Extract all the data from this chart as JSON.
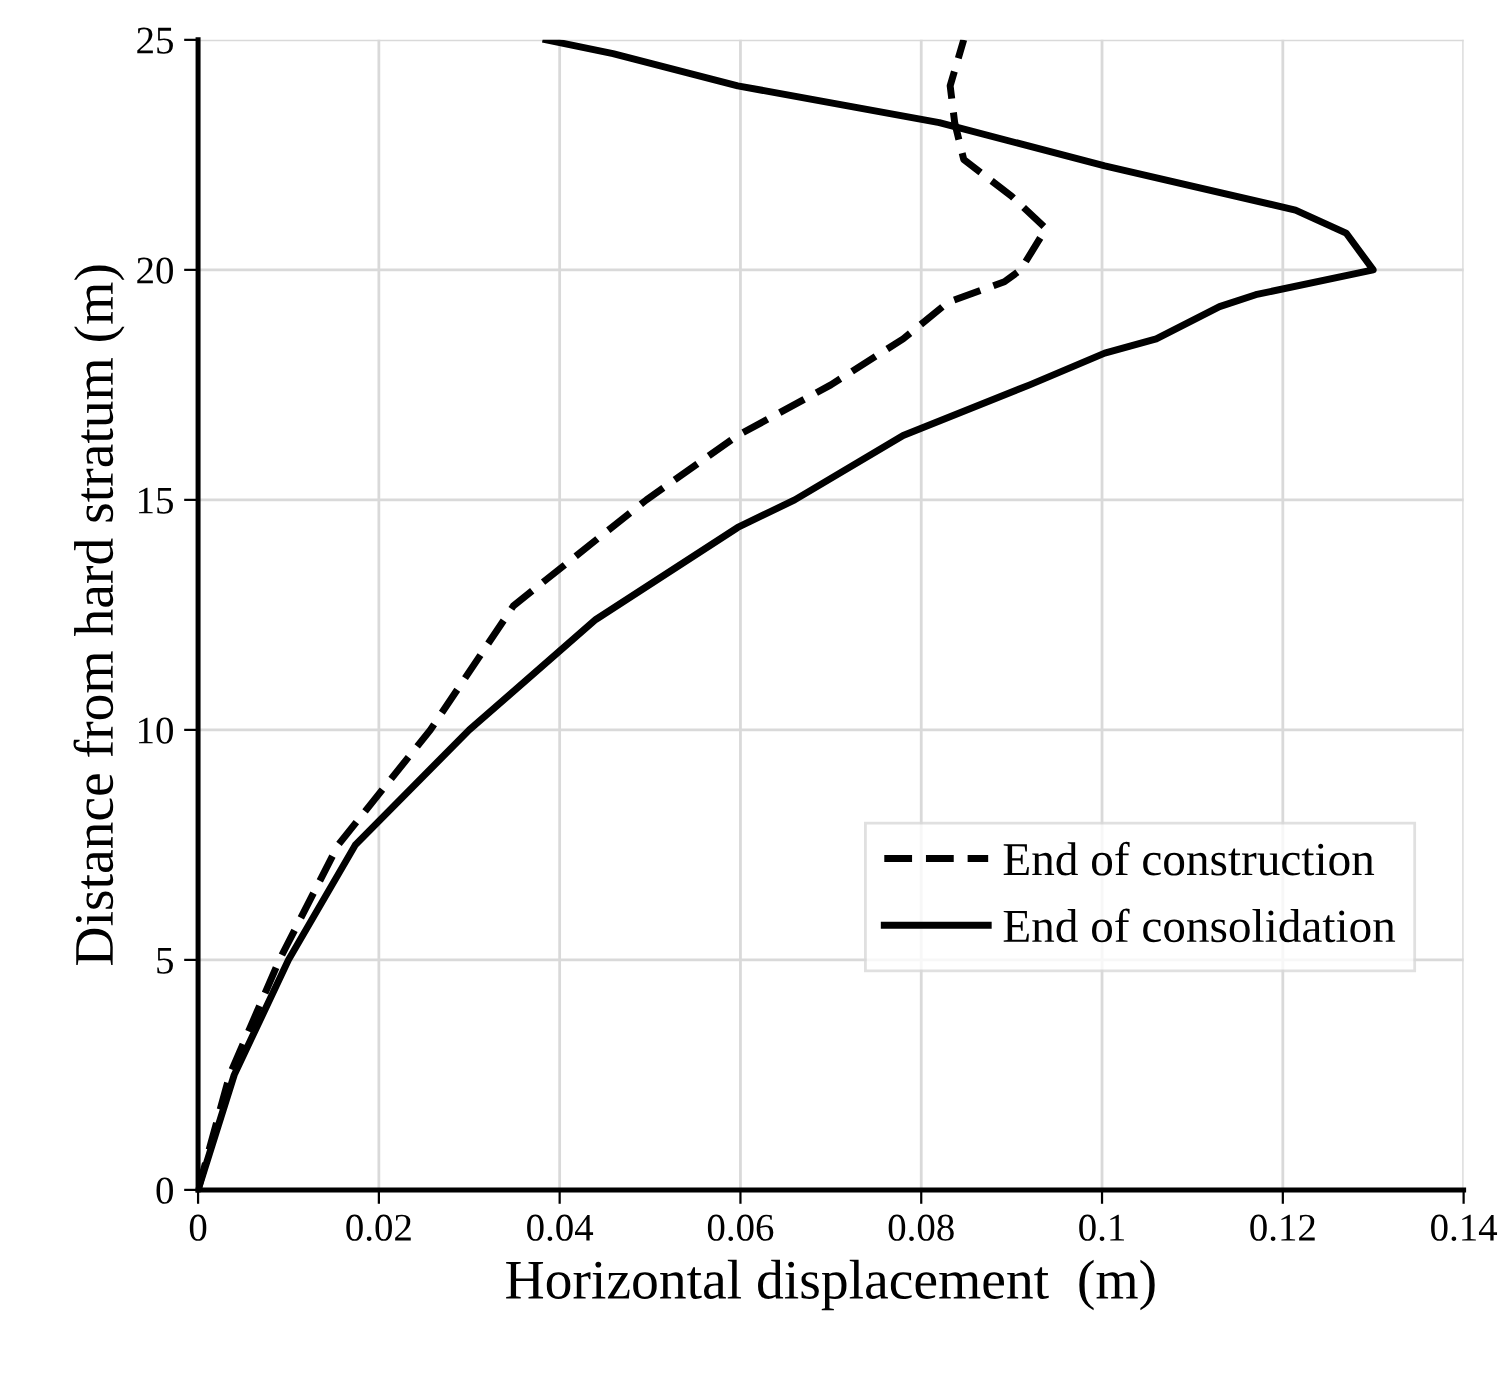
{
  "chart_data": {
    "type": "line",
    "xlabel": "Horizontal displacement  (m)",
    "ylabel": "Distance from hard stratum (m)",
    "xlim": [
      0,
      0.14
    ],
    "xticks": [
      0,
      0.02,
      0.04,
      0.06,
      0.08,
      0.1,
      0.12,
      0.14
    ],
    "ylim": [
      0,
      25
    ],
    "yticks": [
      0,
      5,
      10,
      15,
      20,
      25
    ],
    "grid": true,
    "legend": "bottom right",
    "marker": "none",
    "series": [
      {
        "name": "End of construction",
        "color": "#000000",
        "line_style": "dashed",
        "x": [
          0,
          0.0035,
          0.009,
          0.0155,
          0.0257,
          0.0349,
          0.0496,
          0.0597,
          0.07,
          0.078,
          0.083,
          0.0892,
          0.091,
          0.0938,
          0.09,
          0.0847,
          0.0837,
          0.0832,
          0.0841,
          0.0847
        ],
        "values": [
          0,
          2.5,
          5,
          7.5,
          10,
          12.7,
          15,
          16.4,
          17.5,
          18.5,
          19.3,
          19.74,
          20,
          20.9,
          21.6,
          22.4,
          23.2,
          24.0,
          24.6,
          25
        ]
      },
      {
        "name": "End of consolidation",
        "color": "#000000",
        "line_style": "solid",
        "x": [
          0,
          0.004,
          0.01,
          0.0174,
          0.03,
          0.044,
          0.0597,
          0.066,
          0.078,
          0.092,
          0.1003,
          0.106,
          0.113,
          0.117,
          0.13,
          0.127,
          0.1214,
          0.1003,
          0.082,
          0.0597,
          0.0459,
          0.0385
        ],
        "values": [
          0,
          2.5,
          5,
          7.5,
          10,
          12.4,
          14.4,
          15,
          16.4,
          17.5,
          18.19,
          18.5,
          19.2,
          19.46,
          20,
          20.8,
          21.3,
          22.26,
          23.2,
          24.0,
          24.7,
          25
        ]
      }
    ]
  }
}
